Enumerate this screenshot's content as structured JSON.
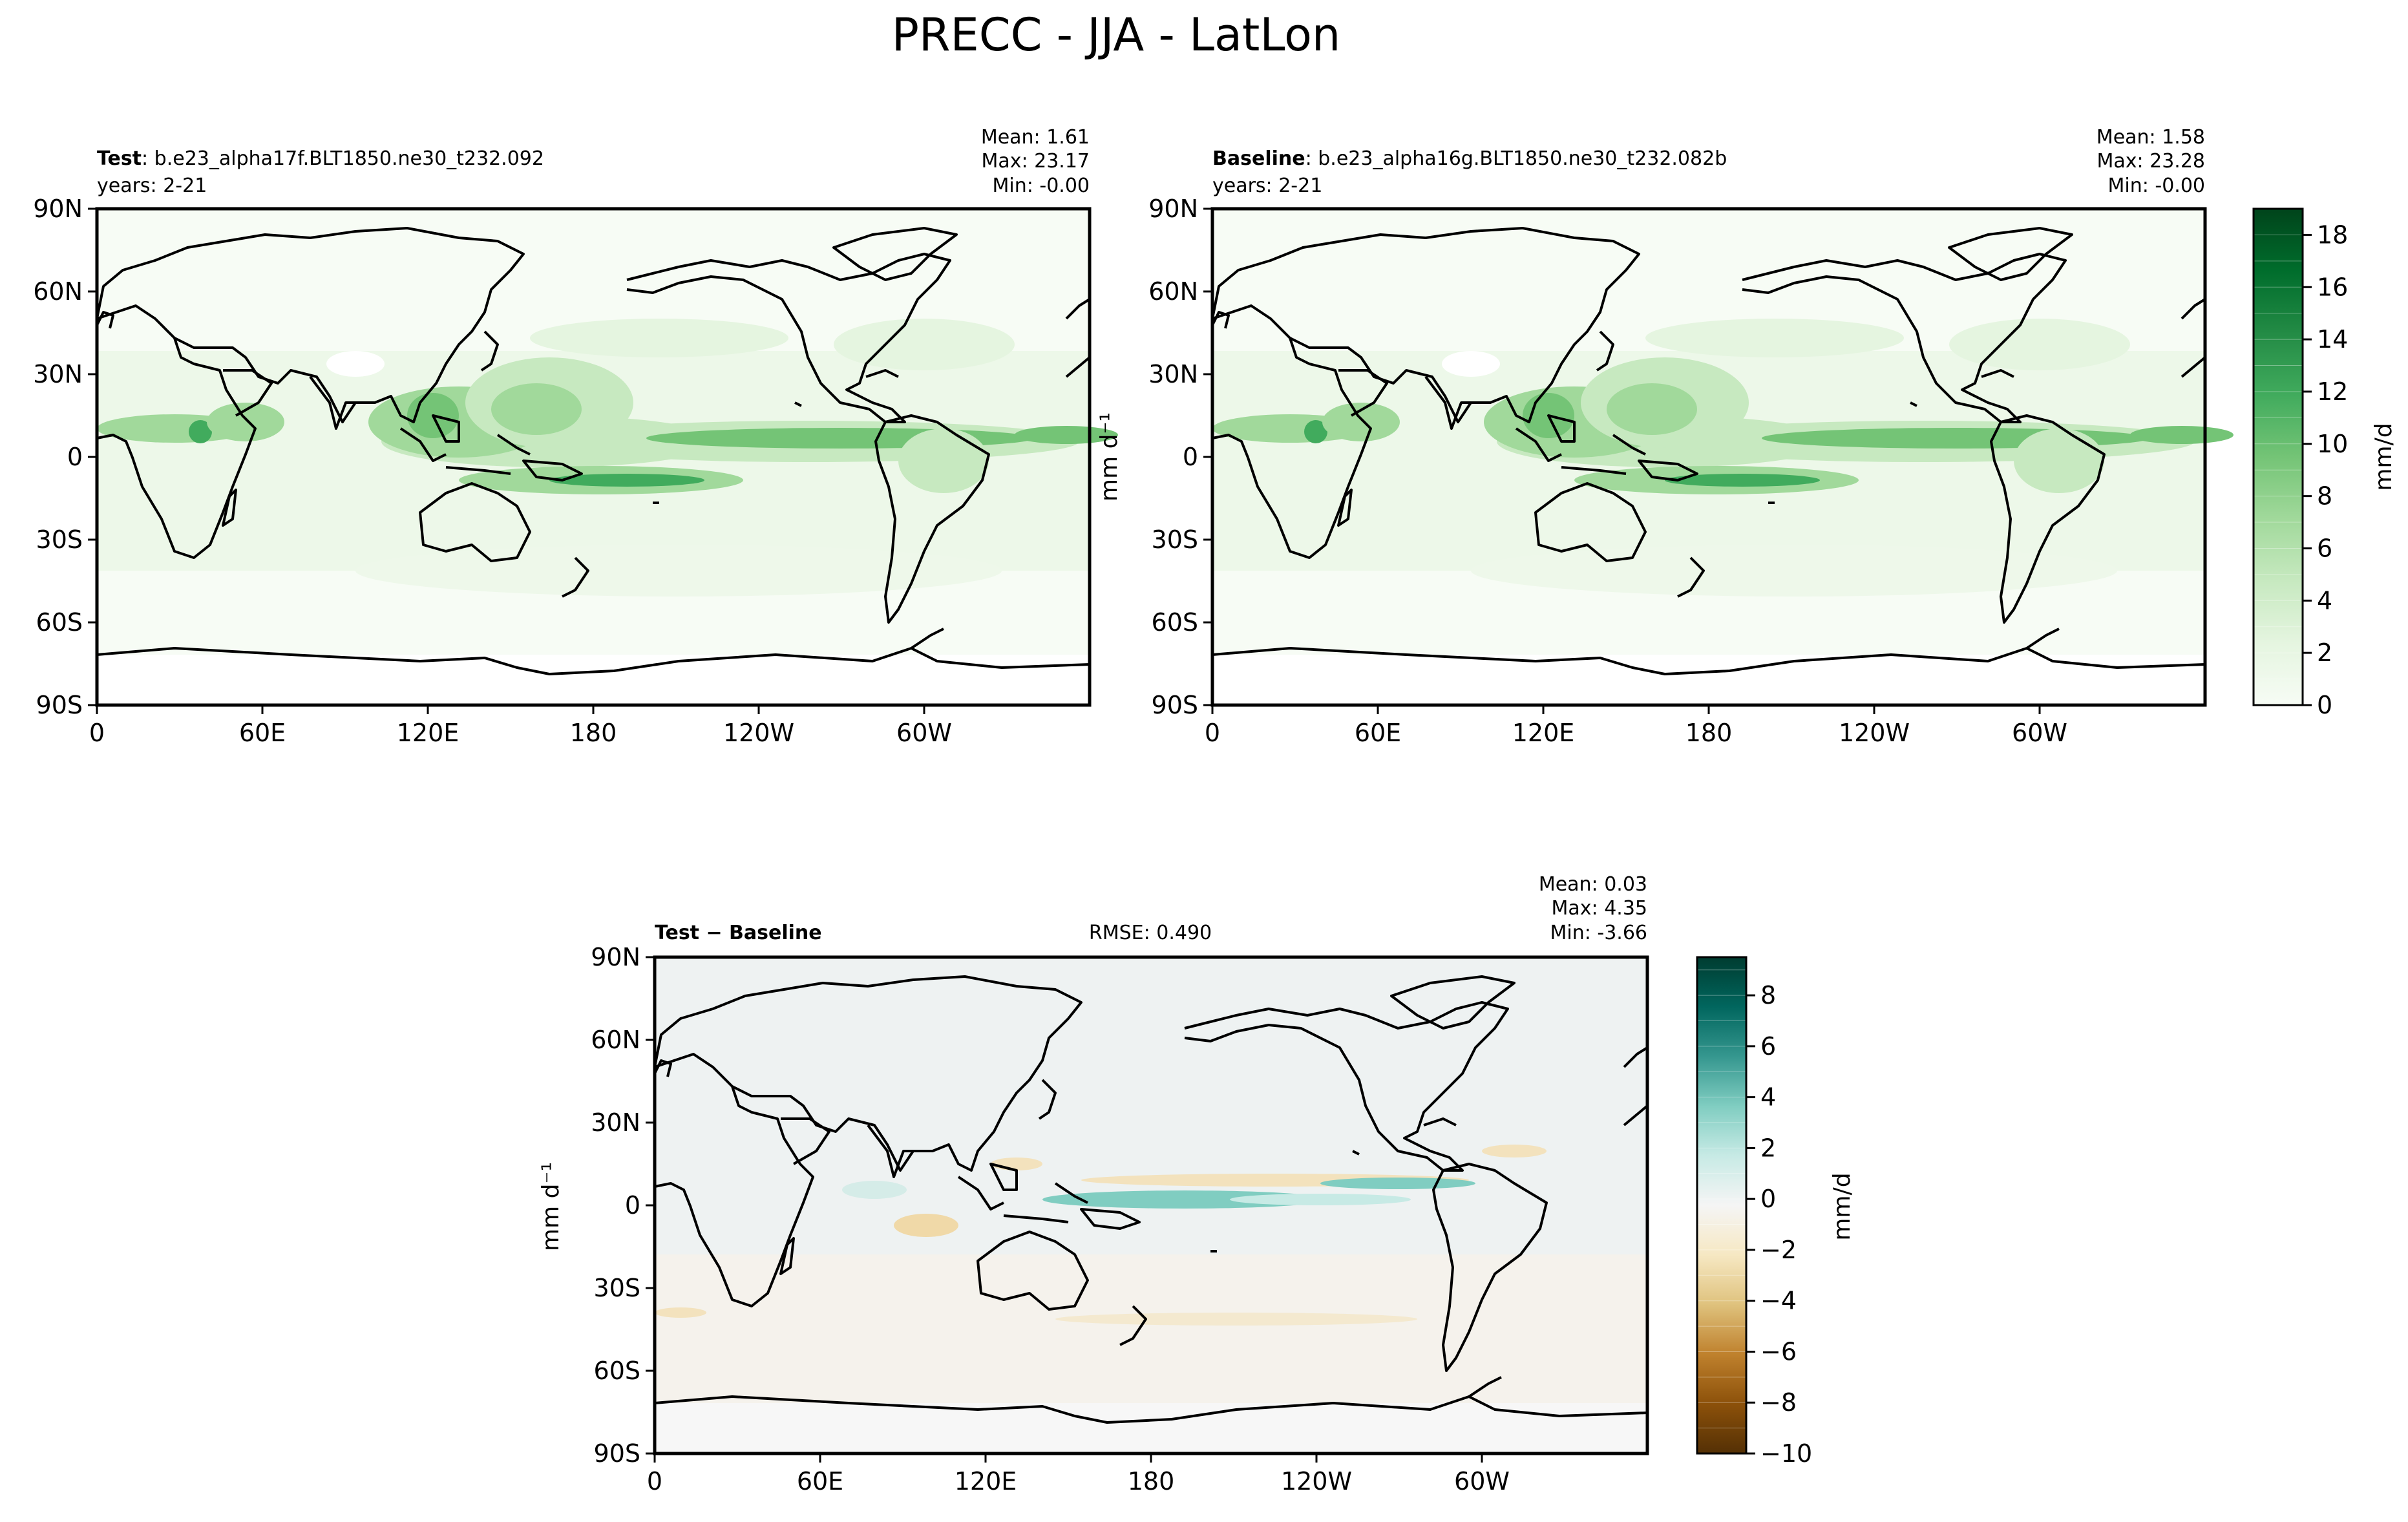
{
  "figure": {
    "title": "PRECC - JJA - LatLon"
  },
  "chart_data": [
    {
      "type": "heatmap",
      "name": "test",
      "label_bold": "Test",
      "label_rest": ": b.e23_alpha17f.BLT1850.ne30_t232.092",
      "years": "years: 2-21",
      "stats": {
        "mean": "Mean:  1.61",
        "max": "Max: 23.17",
        "min": "Min: -0.00"
      },
      "xticks": [
        "0",
        "60E",
        "120E",
        "180",
        "120W",
        "60W"
      ],
      "yticks": [
        "90N",
        "60N",
        "30N",
        "0",
        "30S",
        "60S",
        "90S"
      ],
      "ylabel": "",
      "xlim": [
        0,
        360
      ],
      "ylim": [
        -90,
        90
      ],
      "colormap": "BuGn"
    },
    {
      "type": "heatmap",
      "name": "baseline",
      "label_bold": "Baseline",
      "label_rest": ": b.e23_alpha16g.BLT1850.ne30_t232.082b",
      "years": "years: 2-21",
      "stats": {
        "mean": "Mean:  1.58",
        "max": "Max: 23.28",
        "min": "Min: -0.00"
      },
      "xticks": [
        "0",
        "60E",
        "120E",
        "180",
        "120W",
        "60W"
      ],
      "yticks": [
        "90N",
        "60N",
        "30N",
        "0",
        "30S",
        "60S",
        "90S"
      ],
      "ylabel": "mm d⁻¹",
      "xlim": [
        0,
        360
      ],
      "ylim": [
        -90,
        90
      ],
      "colormap": "BuGn",
      "colorbar": {
        "label": "mm/d",
        "range": [
          0,
          19
        ],
        "ticks": [
          "0",
          "2",
          "4",
          "6",
          "8",
          "10",
          "12",
          "14",
          "16",
          "18"
        ],
        "colors": [
          "#f7fcf5",
          "#e5f5e0",
          "#c7e9c0",
          "#a1d99b",
          "#74c476",
          "#41ab5d",
          "#238b45",
          "#006d2c",
          "#00441b"
        ]
      }
    },
    {
      "type": "heatmap",
      "name": "difference",
      "label_bold": "Test − Baseline",
      "rmse": "RMSE: 0.490",
      "stats": {
        "mean": "Mean:  0.03",
        "max": "Max:  4.35",
        "min": "Min: -3.66"
      },
      "xticks": [
        "0",
        "60E",
        "120E",
        "180",
        "120W",
        "60W"
      ],
      "yticks": [
        "90N",
        "60N",
        "30N",
        "0",
        "30S",
        "60S",
        "90S"
      ],
      "ylabel": "mm d⁻¹",
      "xlim": [
        0,
        360
      ],
      "ylim": [
        -90,
        90
      ],
      "colormap": "BrBG",
      "colorbar": {
        "label": "mm/d",
        "range": [
          -10,
          9.5
        ],
        "ticks": [
          "−10",
          "−8",
          "−6",
          "−4",
          "−2",
          "0",
          "2",
          "4",
          "6",
          "8"
        ],
        "colors": [
          "#543005",
          "#8c510a",
          "#bf812d",
          "#dfc27d",
          "#f6e8c3",
          "#f5f5f5",
          "#c7eae5",
          "#80cdc1",
          "#35978f",
          "#01665e",
          "#003c30"
        ]
      }
    }
  ]
}
